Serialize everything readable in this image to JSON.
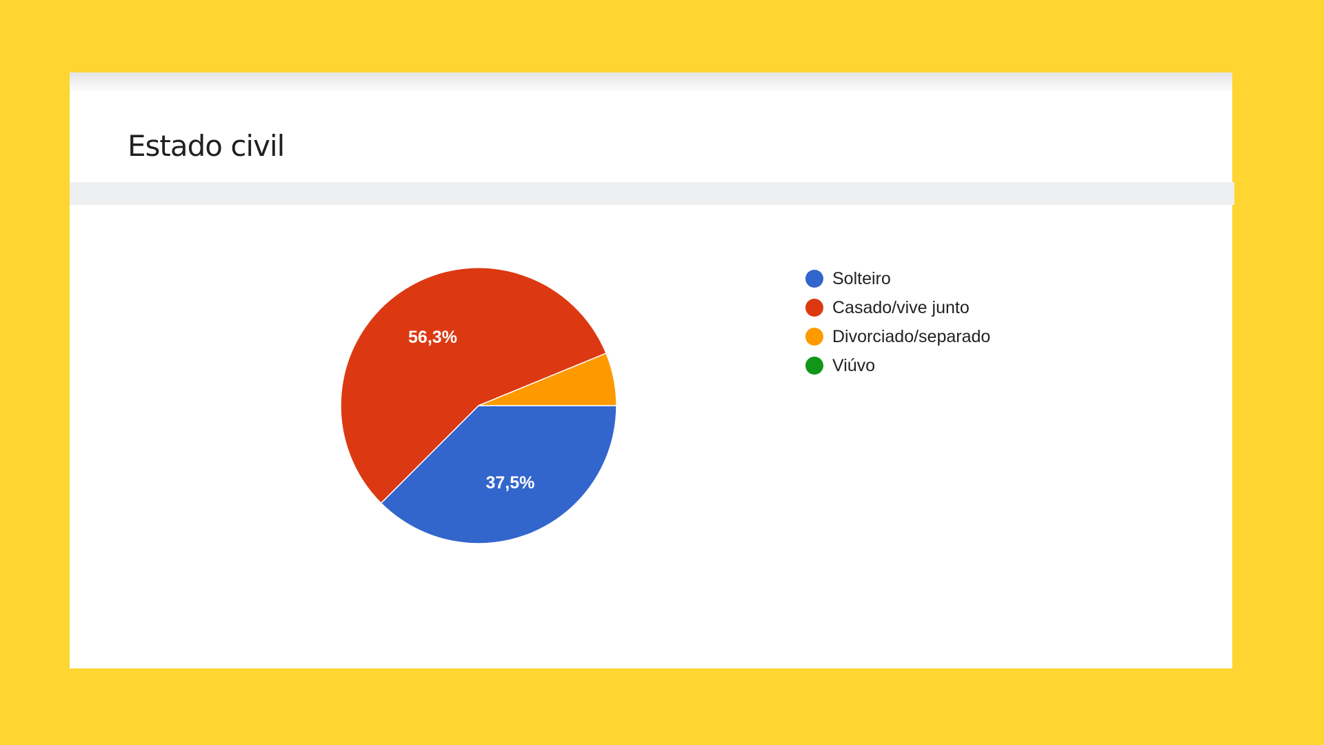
{
  "chart_data": {
    "type": "pie",
    "title": "Estado civil",
    "categories": [
      "Solteiro",
      "Casado/vive junto",
      "Divorciado/separado",
      "Viúvo"
    ],
    "values": [
      37.5,
      56.3,
      6.2,
      0
    ],
    "value_labels": [
      "37,5%",
      "56,3%",
      "",
      ""
    ],
    "colors": [
      "#3366CC",
      "#DC3912",
      "#FF9900",
      "#109618"
    ],
    "legend_position": "right",
    "legend": [
      {
        "label": "Solteiro",
        "color": "#3366CC"
      },
      {
        "label": "Casado/vive junto",
        "color": "#DC3912"
      },
      {
        "label": "Divorciado/separado",
        "color": "#FF9900"
      },
      {
        "label": "Viúvo",
        "color": "#109618"
      }
    ]
  },
  "background_color": "#FED531"
}
